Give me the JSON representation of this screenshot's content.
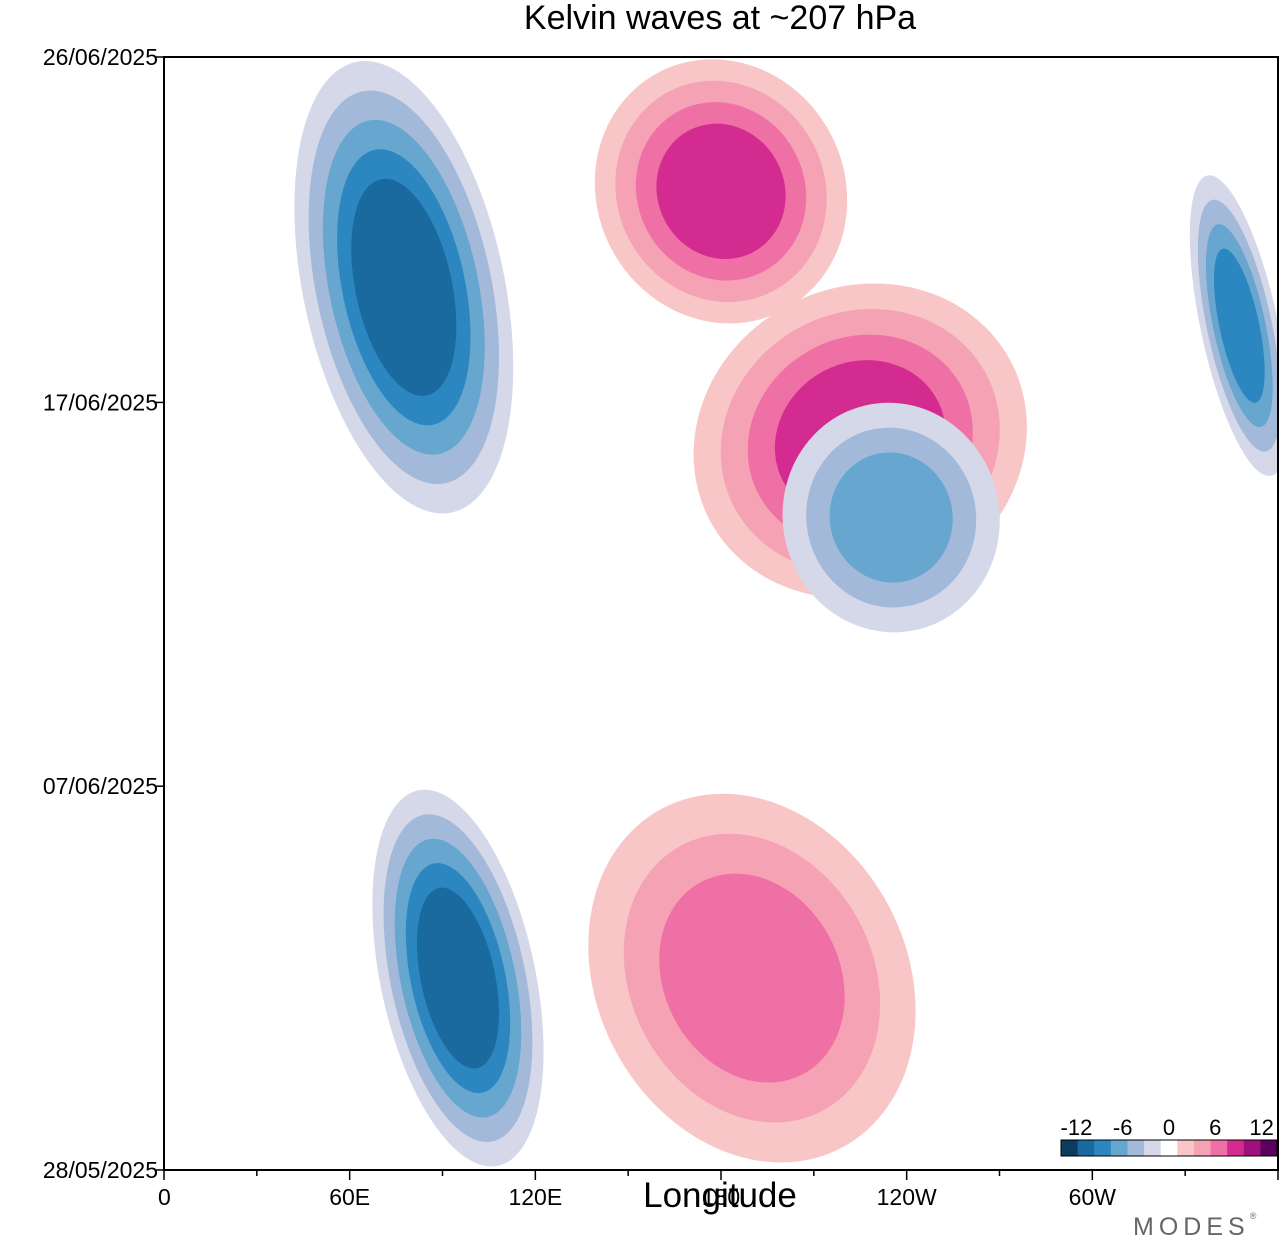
{
  "title": "Kelvin waves at ~207 hPa",
  "xlabel": "Longitude",
  "logo": "MODES",
  "chart_data": {
    "type": "heatmap",
    "title": "Kelvin waves at ~207 hPa",
    "xlabel": "Longitude",
    "ylabel": "",
    "x_ticks": [
      "0",
      "60E",
      "120E",
      "180",
      "120W",
      "60W"
    ],
    "x_tick_values": [
      0,
      60,
      120,
      180,
      240,
      300
    ],
    "xlim": [
      0,
      360
    ],
    "y_ticks": [
      "26/06/2025",
      "17/06/2025",
      "07/06/2025",
      "28/05/2025"
    ],
    "y_tick_values": [
      "2025-06-26",
      "2025-06-17",
      "2025-06-07",
      "2025-05-28"
    ],
    "ylim": [
      "2025-05-28",
      "2025-06-26"
    ],
    "colorbar": {
      "ticks": [
        "-12",
        "-6",
        "0",
        "6",
        "12"
      ],
      "levels": [
        -12,
        -10,
        -8,
        -6,
        -4,
        -2,
        0,
        2,
        4,
        6,
        8,
        10,
        12
      ],
      "colors": [
        "#0c3c5e",
        "#1a6aa0",
        "#2c86c0",
        "#66a6cf",
        "#a3b9da",
        "#d5d8e8",
        "#ffffff",
        "#f8c6c6",
        "#f5a2b5",
        "#ee70a4",
        "#d42b90",
        "#a0107d",
        "#5c0060"
      ],
      "placement": "bottom-right"
    },
    "features": [
      {
        "sign": "negative",
        "lon_range": [
          45,
          110
        ],
        "dates": [
          "2025-06-14",
          "2025-06-26"
        ],
        "peak": -10
      },
      {
        "sign": "negative",
        "lon_range": [
          70,
          120
        ],
        "dates": [
          "2025-05-28",
          "2025-06-07"
        ],
        "peak": -10
      },
      {
        "sign": "positive",
        "lon_range": [
          140,
          220
        ],
        "dates": [
          "2025-06-19",
          "2025-06-26"
        ],
        "peak": 8
      },
      {
        "sign": "positive",
        "lon_range": [
          170,
          280
        ],
        "dates": [
          "2025-06-12",
          "2025-06-20"
        ],
        "peak": 8
      },
      {
        "sign": "positive",
        "lon_range": [
          140,
          240
        ],
        "dates": [
          "2025-05-28",
          "2025-06-07"
        ],
        "peak": 6
      },
      {
        "sign": "negative",
        "lon_range": [
          200,
          270
        ],
        "dates": [
          "2025-06-11",
          "2025-06-17"
        ],
        "peak": -6
      },
      {
        "sign": "negative",
        "lon_range": [
          335,
          360
        ],
        "dates": [
          "2025-06-15",
          "2025-06-23"
        ],
        "peak": -8
      }
    ]
  }
}
